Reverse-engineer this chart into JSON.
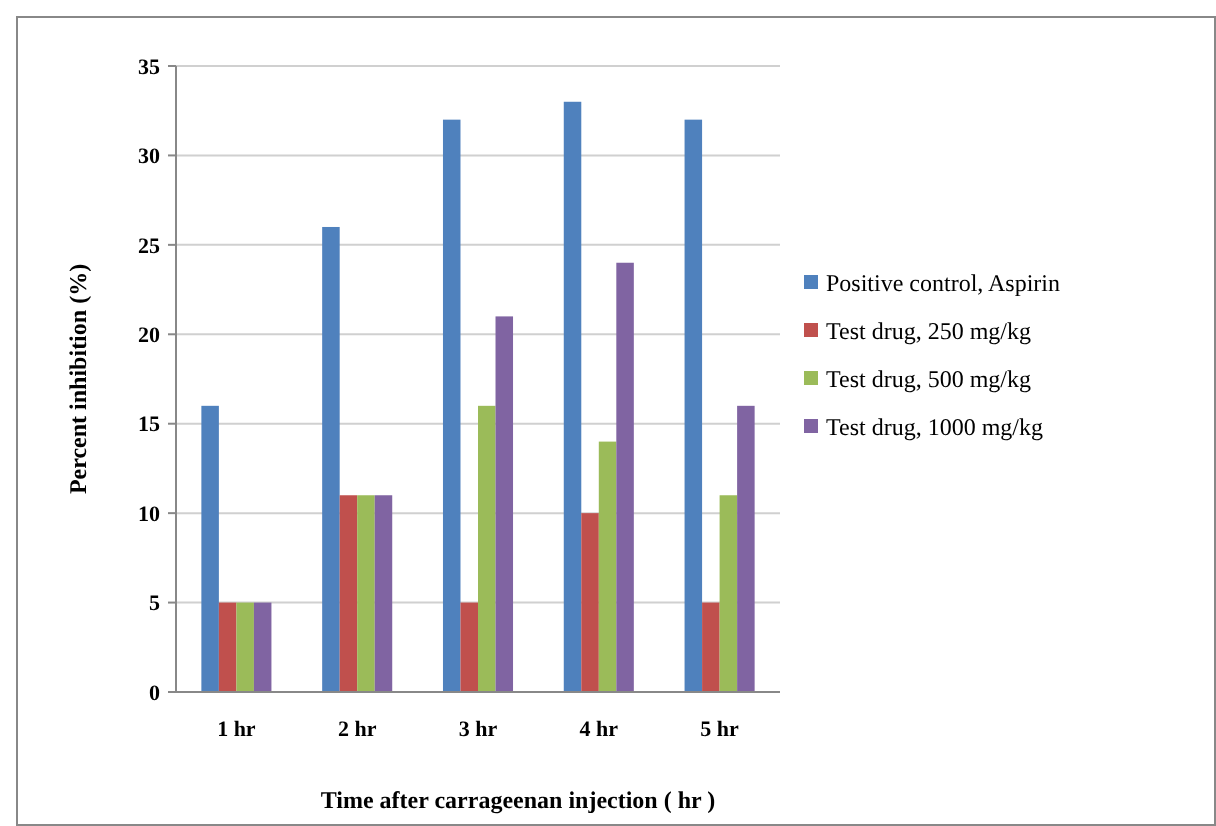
{
  "chart_data": {
    "type": "bar",
    "xlabel": "Time after carrageenan injection ( hr )",
    "ylabel": "Percent inhibition (%)",
    "categories": [
      "1 hr",
      "2 hr",
      "3 hr",
      "4 hr",
      "5 hr"
    ],
    "series": [
      {
        "name": "Positive control, Aspirin",
        "color": "#4f81bd",
        "values": [
          16,
          26,
          32,
          33,
          32
        ]
      },
      {
        "name": "Test drug, 250 mg/kg",
        "color": "#c0504d",
        "values": [
          5,
          11,
          5,
          10,
          5
        ]
      },
      {
        "name": "Test drug, 500 mg/kg",
        "color": "#9bbb59",
        "values": [
          5,
          11,
          16,
          14,
          11
        ]
      },
      {
        "name": "Test drug, 1000 mg/kg",
        "color": "#8064a2",
        "values": [
          5,
          11,
          21,
          24,
          16
        ]
      }
    ],
    "ylim": [
      0,
      35
    ],
    "yticks": [
      0,
      5,
      10,
      15,
      20,
      25,
      30,
      35
    ],
    "grid": "y",
    "legend": "right"
  }
}
